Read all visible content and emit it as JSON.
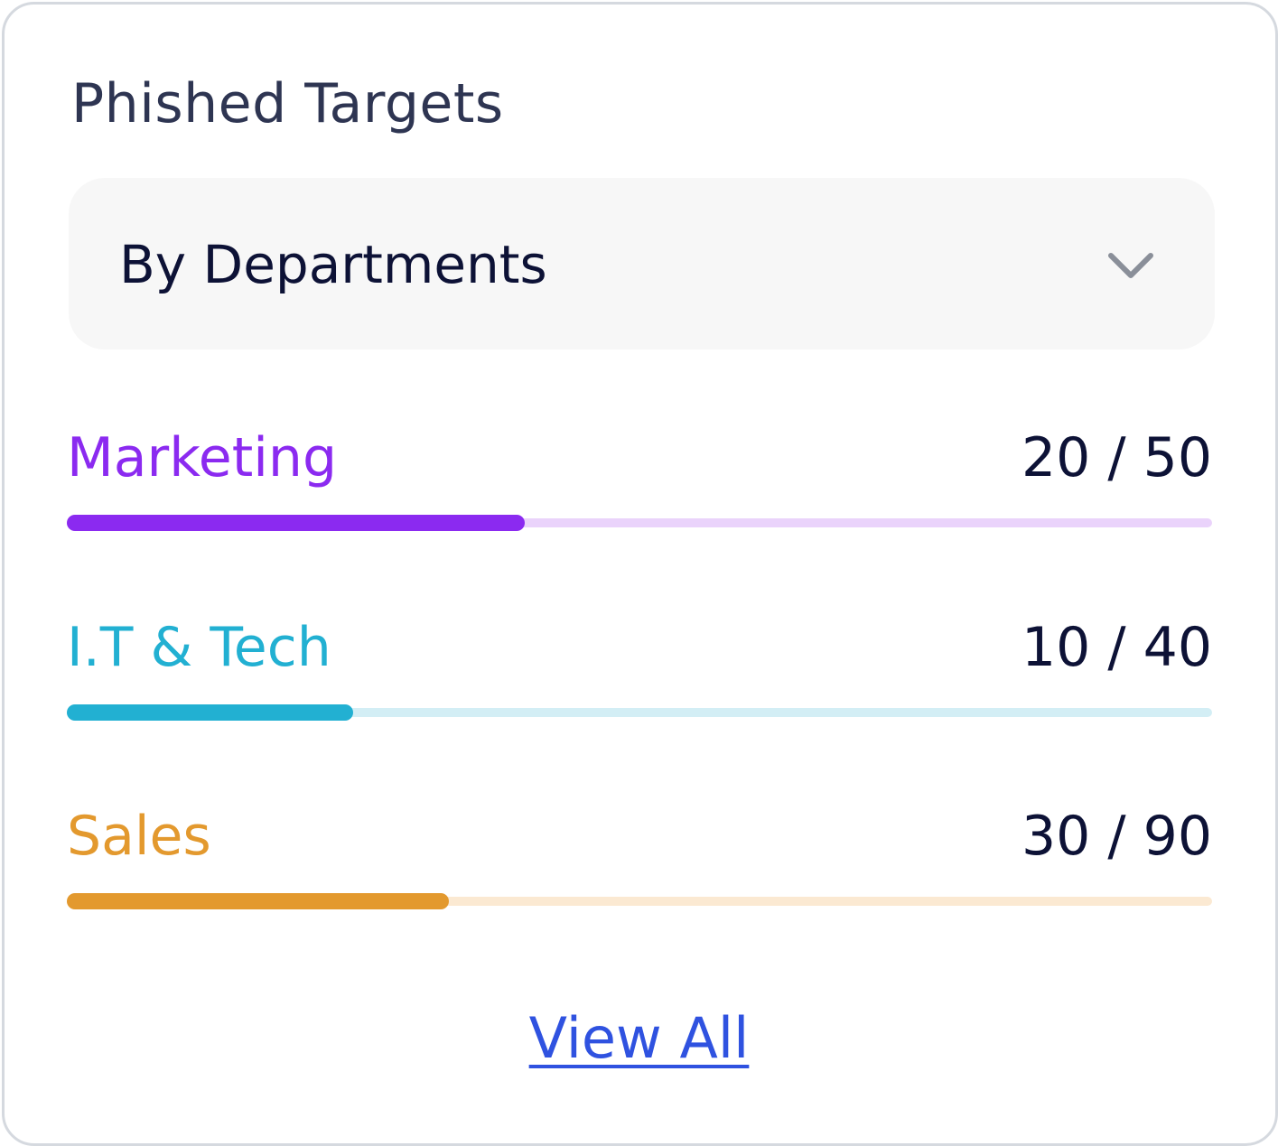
{
  "widget": {
    "title": "Phished Targets"
  },
  "filter": {
    "selected": "By Departments",
    "icon": "chevron-down-icon"
  },
  "departments": [
    {
      "label": "Marketing",
      "count_text": "20 / 50",
      "phished": 20,
      "total": 50,
      "color": "#8b2af0",
      "track_color": "#ead3fb"
    },
    {
      "label": "I.T & Tech",
      "count_text": "10 / 40",
      "phished": 10,
      "total": 40,
      "color": "#22b0d2",
      "track_color": "#d3eef5"
    },
    {
      "label": "Sales",
      "count_text": "30 / 90",
      "phished": 30,
      "total": 90,
      "color": "#e3992e",
      "track_color": "#fbe9d2"
    }
  ],
  "footer": {
    "view_all_label": "View All"
  }
}
